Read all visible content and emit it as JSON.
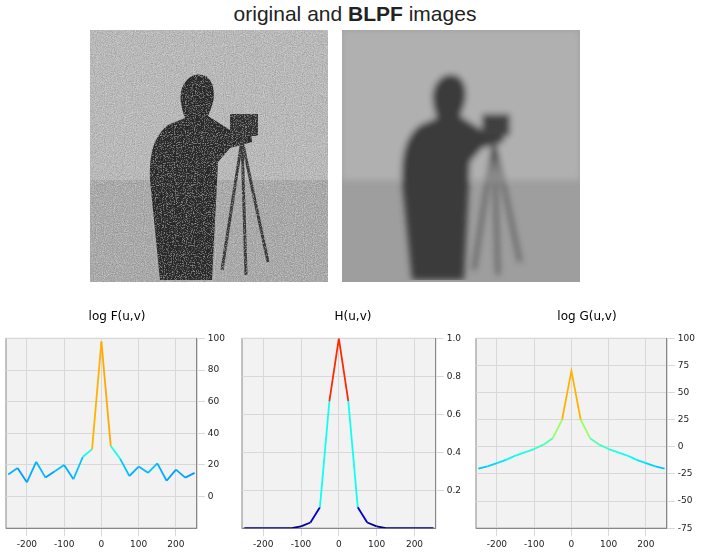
{
  "title": "original and BLPF images",
  "chart_data": [
    {
      "type": "line",
      "title": "log F(u,v)",
      "x": [
        -250,
        -225,
        -200,
        -175,
        -150,
        -125,
        -100,
        -75,
        -50,
        -25,
        0,
        25,
        50,
        75,
        100,
        125,
        150,
        175,
        200,
        225,
        250
      ],
      "values": [
        14,
        18,
        9,
        22,
        12,
        16,
        20,
        11,
        25,
        30,
        98,
        32,
        24,
        13,
        19,
        15,
        21,
        10,
        17,
        12,
        15
      ],
      "xlim": [
        -256,
        256
      ],
      "xticks": [
        -200,
        -100,
        0,
        100,
        200
      ],
      "ylim": [
        -20,
        100
      ],
      "yticks": [
        0,
        20,
        40,
        60,
        80,
        100
      ],
      "grid": true
    },
    {
      "type": "line",
      "title": "H(u,v)",
      "x": [
        -250,
        -225,
        -200,
        -175,
        -150,
        -125,
        -100,
        -75,
        -50,
        -25,
        0,
        25,
        50,
        75,
        100,
        125,
        150,
        175,
        200,
        225,
        250
      ],
      "values": [
        0,
        0,
        0,
        0,
        0,
        0,
        0.01,
        0.03,
        0.11,
        0.67,
        1,
        0.67,
        0.11,
        0.03,
        0.01,
        0,
        0,
        0,
        0,
        0,
        0
      ],
      "xlim": [
        -256,
        256
      ],
      "xticks": [
        -200,
        -100,
        0,
        100,
        200
      ],
      "ylim": [
        0,
        1
      ],
      "yticks": [
        0.2,
        0.4,
        0.6,
        0.8,
        {
          "value": 1,
          "label": "1.0"
        }
      ],
      "grid": true
    },
    {
      "type": "line",
      "title": "log G(u,v)",
      "x": [
        -250,
        -225,
        -200,
        -175,
        -150,
        -125,
        -100,
        -75,
        -50,
        -25,
        0,
        25,
        50,
        75,
        100,
        125,
        150,
        175,
        200,
        225,
        250
      ],
      "values": [
        -20,
        -18,
        -15,
        -12,
        -8,
        -5,
        -2,
        2,
        8,
        25,
        70,
        25,
        8,
        2,
        -2,
        -5,
        -8,
        -12,
        -15,
        -18,
        -20
      ],
      "xlim": [
        -256,
        256
      ],
      "xticks": [
        -200,
        -100,
        0,
        100,
        200
      ],
      "ylim": [
        -75,
        100
      ],
      "yticks": [
        -75,
        -50,
        -25,
        0,
        25,
        50,
        75,
        100
      ],
      "grid": true
    }
  ]
}
